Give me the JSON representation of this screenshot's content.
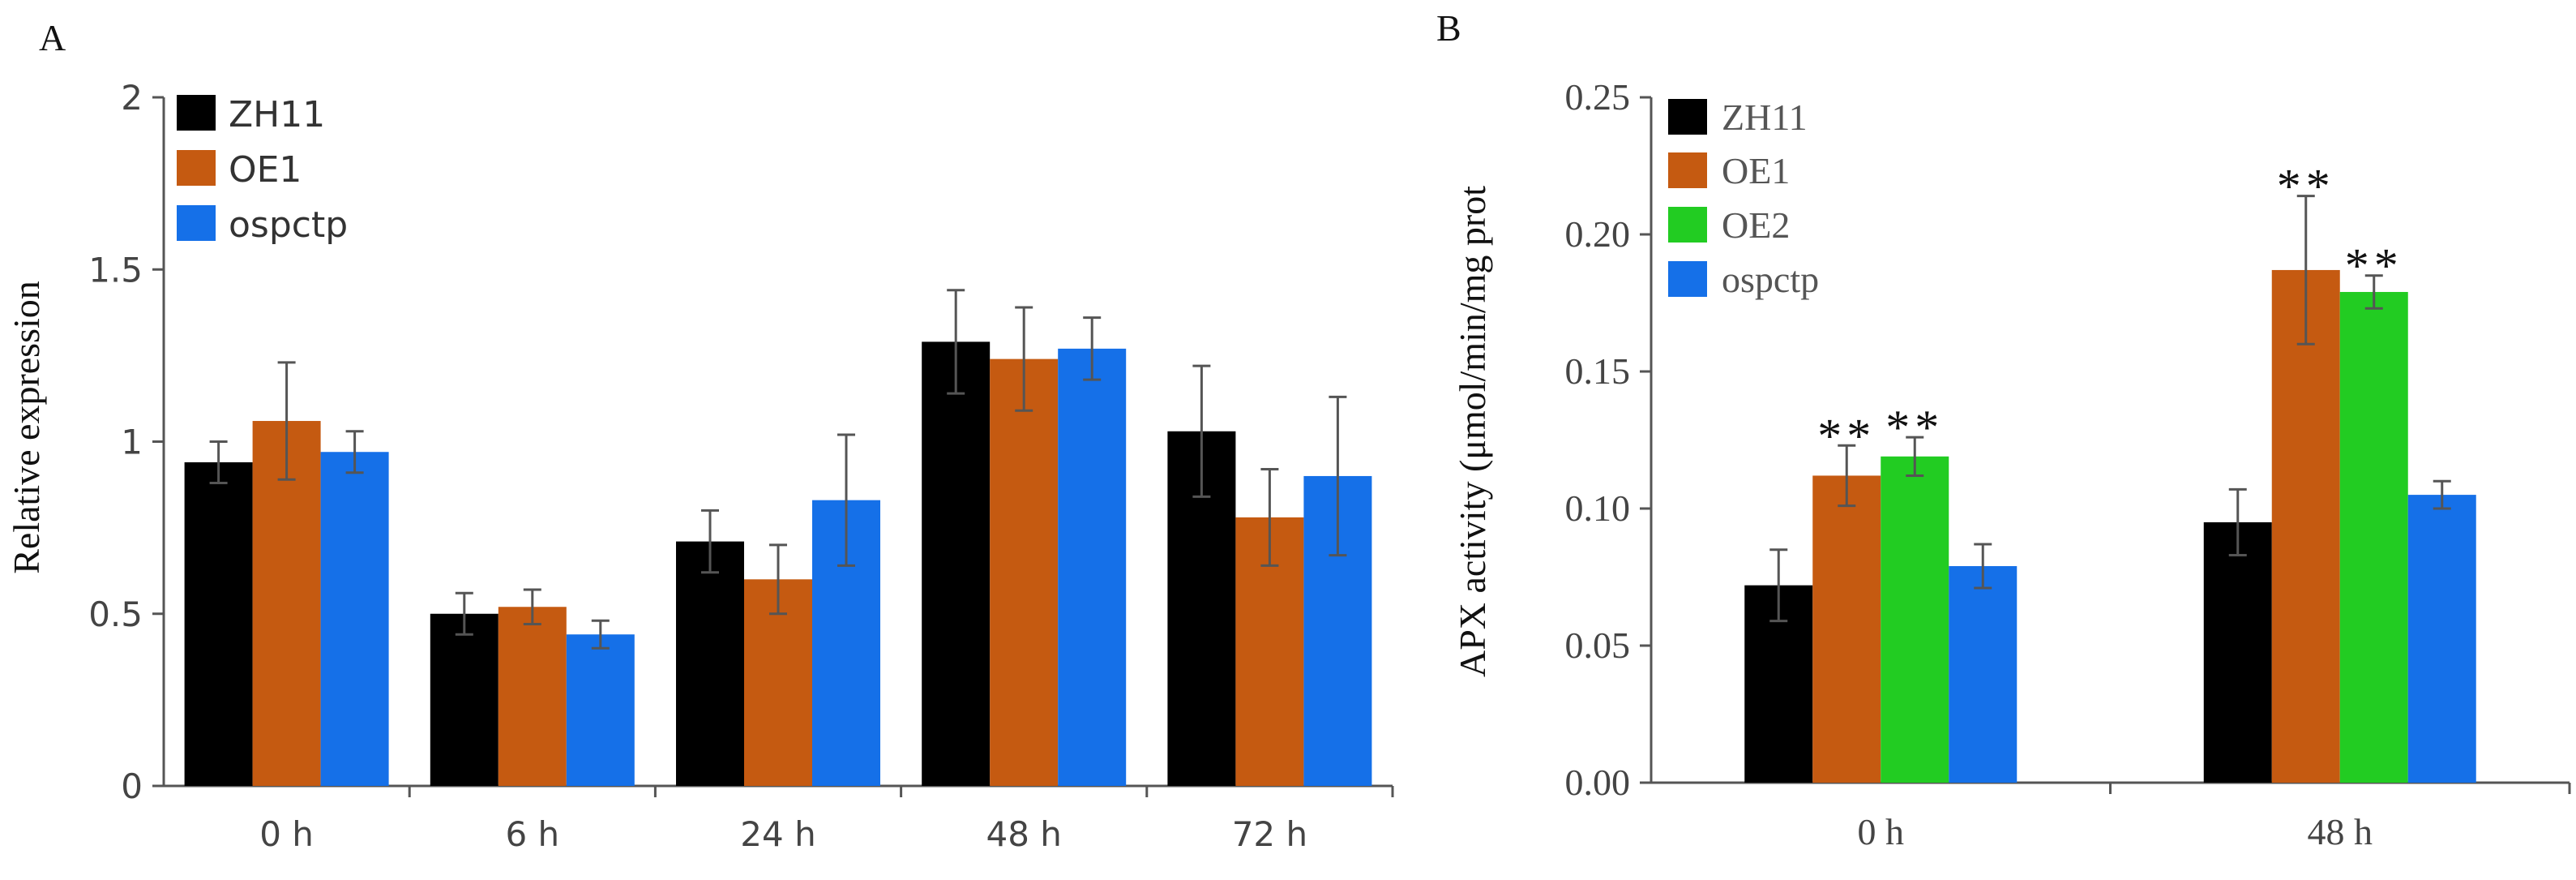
{
  "panels": [
    {
      "id": "A",
      "panel_label": "A",
      "legend": [
        {
          "label": "ZH11",
          "color": "#000000"
        },
        {
          "label": "OE1",
          "color": "#C55A11"
        },
        {
          "label": "ospctp",
          "color": "#1570E8"
        }
      ]
    },
    {
      "id": "B",
      "panel_label": "B",
      "legend": [
        {
          "label": "ZH11",
          "color": "#000000"
        },
        {
          "label": "OE1",
          "color": "#C55A11"
        },
        {
          "label": "OE2",
          "color": "#22CC22"
        },
        {
          "label": "ospctp",
          "color": "#1570E8"
        }
      ]
    }
  ],
  "chart_data": [
    {
      "type": "bar",
      "panel": "A",
      "title": "",
      "xlabel": "",
      "ylabel": "Relative expression",
      "ylim": [
        0,
        2
      ],
      "yticks": [
        0,
        0.5,
        1,
        1.5,
        2
      ],
      "ytick_labels": [
        "0",
        "0.5",
        "1",
        "1.5",
        "2"
      ],
      "categories": [
        "0 h",
        "6 h",
        "24 h",
        "48 h",
        "72 h"
      ],
      "series": [
        {
          "name": "ZH11",
          "color": "#000000",
          "values": [
            0.94,
            0.5,
            0.71,
            1.29,
            1.03
          ],
          "errors": [
            0.06,
            0.06,
            0.09,
            0.15,
            0.19
          ]
        },
        {
          "name": "OE1",
          "color": "#C55A11",
          "values": [
            1.06,
            0.52,
            0.6,
            1.24,
            0.78
          ],
          "errors": [
            0.17,
            0.05,
            0.1,
            0.15,
            0.14
          ]
        },
        {
          "name": "ospctp",
          "color": "#1570E8",
          "values": [
            0.97,
            0.44,
            0.83,
            1.27,
            0.9
          ],
          "errors": [
            0.06,
            0.04,
            0.19,
            0.09,
            0.23
          ]
        }
      ],
      "annotations": []
    },
    {
      "type": "bar",
      "panel": "B",
      "title": "",
      "xlabel": "",
      "ylabel": "APX activity (μmol/min/mg prot",
      "ylim": [
        0,
        0.25
      ],
      "yticks": [
        0,
        0.05,
        0.1,
        0.15,
        0.2,
        0.25
      ],
      "ytick_labels": [
        "0.00",
        "0.05",
        "0.10",
        "0.15",
        "0.20",
        "0.25"
      ],
      "categories": [
        "0 h",
        "48 h"
      ],
      "series": [
        {
          "name": "ZH11",
          "color": "#000000",
          "values": [
            0.072,
            0.095
          ],
          "errors": [
            0.013,
            0.012
          ]
        },
        {
          "name": "OE1",
          "color": "#C55A11",
          "values": [
            0.112,
            0.187
          ],
          "errors": [
            0.011,
            0.027
          ]
        },
        {
          "name": "OE2",
          "color": "#22CC22",
          "values": [
            0.119,
            0.179
          ],
          "errors": [
            0.007,
            0.006
          ]
        },
        {
          "name": "ospctp",
          "color": "#1570E8",
          "values": [
            0.079,
            0.105
          ],
          "errors": [
            0.008,
            0.005
          ]
        }
      ],
      "annotations": [
        {
          "text": "**",
          "category": 0,
          "series": 1
        },
        {
          "text": "**",
          "category": 0,
          "series": 2
        },
        {
          "text": "**",
          "category": 1,
          "series": 1
        },
        {
          "text": "**",
          "category": 1,
          "series": 2
        }
      ]
    }
  ]
}
